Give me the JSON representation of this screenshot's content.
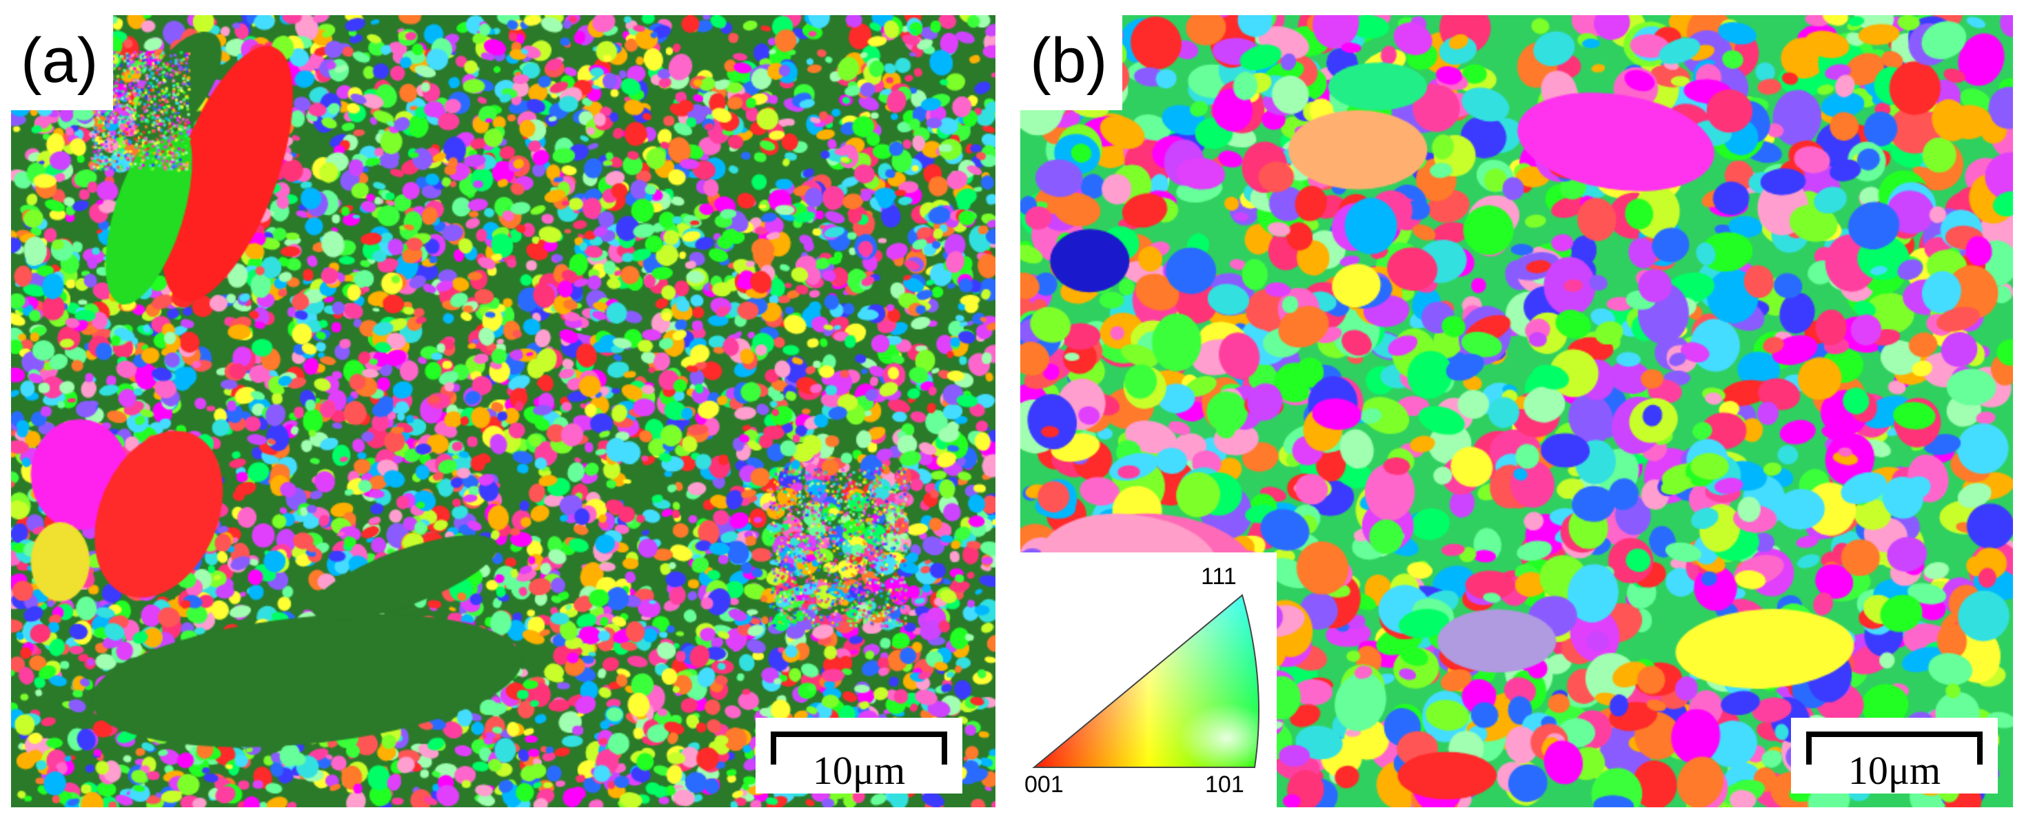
{
  "panels": [
    {
      "label": "(a)",
      "scale_bar_text": "10μm"
    },
    {
      "label": "(b)",
      "scale_bar_text": "10μm",
      "ipf_key": {
        "corner_111": "111",
        "corner_001": "001",
        "corner_101": "101"
      }
    }
  ],
  "colors": {
    "corner_001": "#ff0000",
    "corner_101": "#00ff00",
    "corner_111": "#0000ff",
    "unindexed_phase": "#2a7a2a"
  }
}
